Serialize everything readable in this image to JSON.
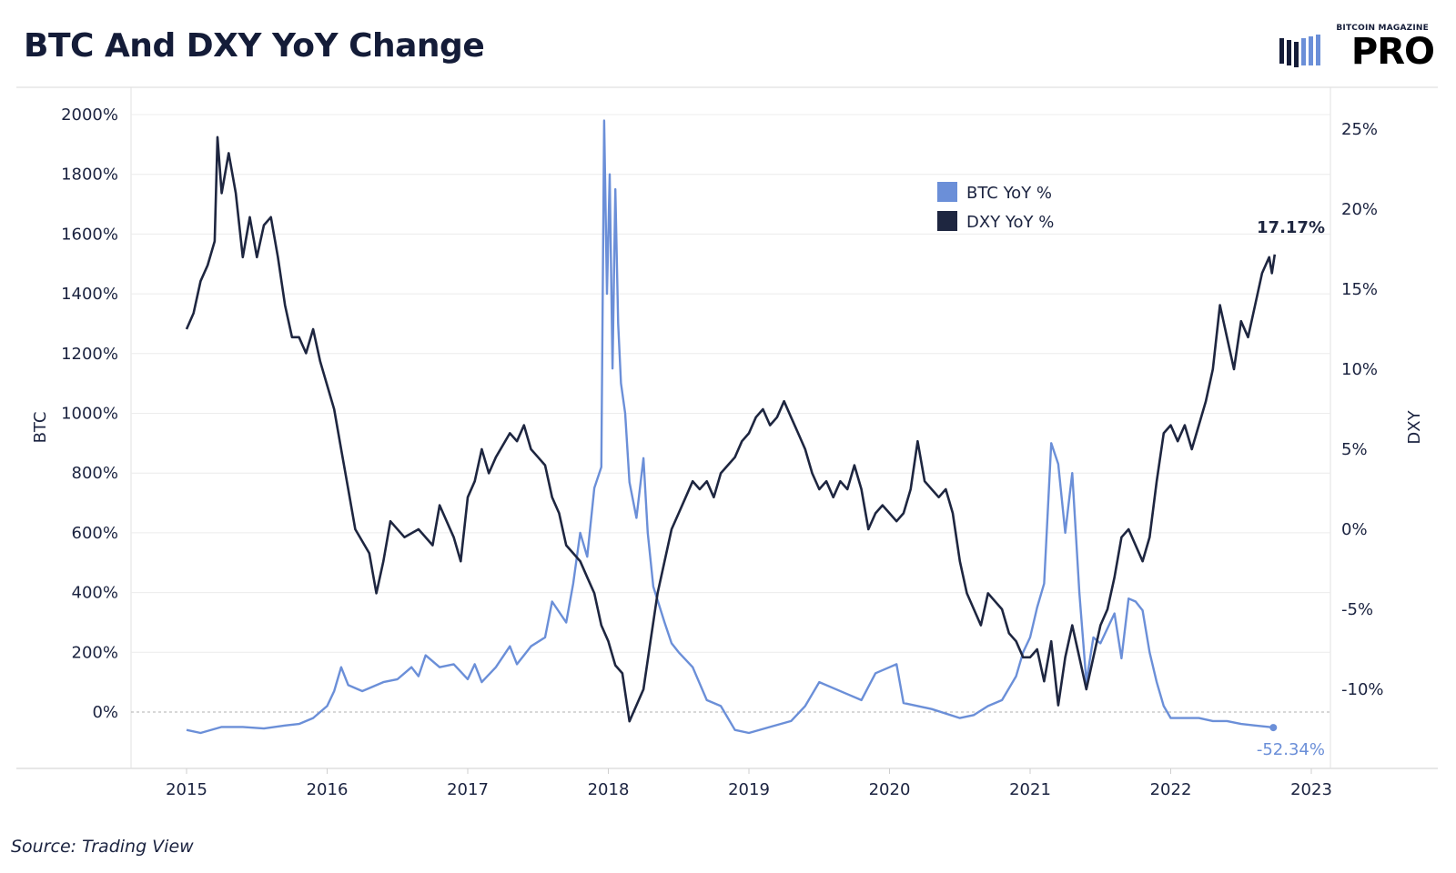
{
  "header": {
    "title": "BTC And DXY YoY Change",
    "logo_small": "BITCOIN MAGAZINE",
    "logo_big": "PRO"
  },
  "footer": {
    "source": "Source: Trading View"
  },
  "colors": {
    "btc": "#6b8fd8",
    "dxy": "#1e2640",
    "text": "#1b2340",
    "grid": "#ececec",
    "zero": "#b0b0b0"
  },
  "chart_data": {
    "type": "line",
    "title": "BTC And DXY YoY Change",
    "x_ticks": [
      "2015",
      "2016",
      "2017",
      "2018",
      "2019",
      "2020",
      "2021",
      "2022",
      "2023"
    ],
    "y_left": {
      "label": "BTC",
      "range": [
        -200,
        2000
      ],
      "ticks": [
        "2000%",
        "1800%",
        "1600%",
        "1400%",
        "1200%",
        "1000%",
        "800%",
        "600%",
        "400%",
        "200%",
        "0%"
      ],
      "tick_values": [
        2000,
        1800,
        1600,
        1400,
        1200,
        1000,
        800,
        600,
        400,
        200,
        0
      ]
    },
    "y_right": {
      "label": "DXY",
      "range": [
        -13.5,
        26.5
      ],
      "ticks": [
        "25%",
        "20%",
        "15%",
        "10%",
        "5%",
        "0%",
        "-5%",
        "-10%"
      ],
      "tick_values": [
        25,
        20,
        15,
        10,
        5,
        0,
        -5,
        -10
      ]
    },
    "legend": {
      "position": "top-right",
      "entries": [
        "BTC YoY %",
        "DXY YoY %"
      ]
    },
    "series": [
      {
        "name": "BTC YoY %",
        "axis": "left",
        "end_label": "-52.34%",
        "points": [
          [
            2015.0,
            -60
          ],
          [
            2015.1,
            -70
          ],
          [
            2015.25,
            -50
          ],
          [
            2015.4,
            -50
          ],
          [
            2015.55,
            -55
          ],
          [
            2015.7,
            -45
          ],
          [
            2015.8,
            -40
          ],
          [
            2015.9,
            -20
          ],
          [
            2016.0,
            20
          ],
          [
            2016.05,
            70
          ],
          [
            2016.1,
            150
          ],
          [
            2016.15,
            90
          ],
          [
            2016.25,
            70
          ],
          [
            2016.4,
            100
          ],
          [
            2016.5,
            110
          ],
          [
            2016.55,
            130
          ],
          [
            2016.6,
            150
          ],
          [
            2016.65,
            120
          ],
          [
            2016.7,
            190
          ],
          [
            2016.8,
            150
          ],
          [
            2016.9,
            160
          ],
          [
            2017.0,
            110
          ],
          [
            2017.05,
            160
          ],
          [
            2017.1,
            100
          ],
          [
            2017.2,
            150
          ],
          [
            2017.3,
            220
          ],
          [
            2017.35,
            160
          ],
          [
            2017.45,
            220
          ],
          [
            2017.55,
            250
          ],
          [
            2017.6,
            370
          ],
          [
            2017.7,
            300
          ],
          [
            2017.75,
            430
          ],
          [
            2017.8,
            600
          ],
          [
            2017.85,
            520
          ],
          [
            2017.9,
            750
          ],
          [
            2017.95,
            820
          ],
          [
            2017.97,
            1980
          ],
          [
            2017.99,
            1400
          ],
          [
            2018.01,
            1800
          ],
          [
            2018.03,
            1150
          ],
          [
            2018.05,
            1750
          ],
          [
            2018.07,
            1300
          ],
          [
            2018.09,
            1100
          ],
          [
            2018.12,
            1000
          ],
          [
            2018.15,
            770
          ],
          [
            2018.2,
            650
          ],
          [
            2018.25,
            850
          ],
          [
            2018.28,
            600
          ],
          [
            2018.32,
            420
          ],
          [
            2018.4,
            300
          ],
          [
            2018.45,
            230
          ],
          [
            2018.5,
            200
          ],
          [
            2018.6,
            150
          ],
          [
            2018.7,
            40
          ],
          [
            2018.8,
            20
          ],
          [
            2018.9,
            -60
          ],
          [
            2019.0,
            -70
          ],
          [
            2019.15,
            -50
          ],
          [
            2019.3,
            -30
          ],
          [
            2019.4,
            20
          ],
          [
            2019.5,
            100
          ],
          [
            2019.6,
            80
          ],
          [
            2019.7,
            60
          ],
          [
            2019.8,
            40
          ],
          [
            2019.9,
            130
          ],
          [
            2020.0,
            150
          ],
          [
            2020.05,
            160
          ],
          [
            2020.1,
            30
          ],
          [
            2020.3,
            10
          ],
          [
            2020.5,
            -20
          ],
          [
            2020.6,
            -10
          ],
          [
            2020.7,
            20
          ],
          [
            2020.8,
            40
          ],
          [
            2020.9,
            120
          ],
          [
            2020.95,
            200
          ],
          [
            2021.0,
            250
          ],
          [
            2021.05,
            350
          ],
          [
            2021.1,
            430
          ],
          [
            2021.15,
            900
          ],
          [
            2021.2,
            830
          ],
          [
            2021.25,
            600
          ],
          [
            2021.3,
            800
          ],
          [
            2021.35,
            400
          ],
          [
            2021.4,
            100
          ],
          [
            2021.45,
            250
          ],
          [
            2021.5,
            230
          ],
          [
            2021.6,
            330
          ],
          [
            2021.65,
            180
          ],
          [
            2021.7,
            380
          ],
          [
            2021.75,
            370
          ],
          [
            2021.8,
            340
          ],
          [
            2021.85,
            200
          ],
          [
            2021.9,
            100
          ],
          [
            2021.95,
            20
          ],
          [
            2022.0,
            -20
          ],
          [
            2022.1,
            -20
          ],
          [
            2022.2,
            -20
          ],
          [
            2022.3,
            -30
          ],
          [
            2022.4,
            -30
          ],
          [
            2022.5,
            -40
          ],
          [
            2022.6,
            -45
          ],
          [
            2022.7,
            -50
          ],
          [
            2022.73,
            -52
          ]
        ]
      },
      {
        "name": "DXY YoY %",
        "axis": "right",
        "end_label": "17.17%",
        "points": [
          [
            2015.0,
            12.5
          ],
          [
            2015.05,
            13.5
          ],
          [
            2015.1,
            15.5
          ],
          [
            2015.15,
            16.5
          ],
          [
            2015.2,
            18
          ],
          [
            2015.22,
            24.5
          ],
          [
            2015.25,
            21
          ],
          [
            2015.3,
            23.5
          ],
          [
            2015.35,
            21
          ],
          [
            2015.4,
            17
          ],
          [
            2015.45,
            19.5
          ],
          [
            2015.5,
            17
          ],
          [
            2015.55,
            19
          ],
          [
            2015.6,
            19.5
          ],
          [
            2015.65,
            17
          ],
          [
            2015.7,
            14
          ],
          [
            2015.75,
            12
          ],
          [
            2015.8,
            12
          ],
          [
            2015.85,
            11
          ],
          [
            2015.9,
            12.5
          ],
          [
            2015.95,
            10.5
          ],
          [
            2016.0,
            9
          ],
          [
            2016.05,
            7.5
          ],
          [
            2016.1,
            5
          ],
          [
            2016.15,
            2.5
          ],
          [
            2016.2,
            0
          ],
          [
            2016.3,
            -1.5
          ],
          [
            2016.35,
            -4
          ],
          [
            2016.4,
            -2
          ],
          [
            2016.45,
            0.5
          ],
          [
            2016.55,
            -0.5
          ],
          [
            2016.65,
            0
          ],
          [
            2016.75,
            -1
          ],
          [
            2016.8,
            1.5
          ],
          [
            2016.9,
            -0.5
          ],
          [
            2016.95,
            -2
          ],
          [
            2017.0,
            2
          ],
          [
            2017.05,
            3
          ],
          [
            2017.1,
            5
          ],
          [
            2017.15,
            3.5
          ],
          [
            2017.2,
            4.5
          ],
          [
            2017.3,
            6
          ],
          [
            2017.35,
            5.5
          ],
          [
            2017.4,
            6.5
          ],
          [
            2017.45,
            5
          ],
          [
            2017.5,
            4.5
          ],
          [
            2017.55,
            4
          ],
          [
            2017.6,
            2
          ],
          [
            2017.65,
            1
          ],
          [
            2017.7,
            -1
          ],
          [
            2017.75,
            -1.5
          ],
          [
            2017.8,
            -2
          ],
          [
            2017.85,
            -3
          ],
          [
            2017.9,
            -4
          ],
          [
            2017.95,
            -6
          ],
          [
            2018.0,
            -7
          ],
          [
            2018.05,
            -8.5
          ],
          [
            2018.1,
            -9
          ],
          [
            2018.15,
            -12
          ],
          [
            2018.2,
            -11
          ],
          [
            2018.25,
            -10
          ],
          [
            2018.3,
            -7
          ],
          [
            2018.35,
            -4
          ],
          [
            2018.4,
            -2
          ],
          [
            2018.45,
            0
          ],
          [
            2018.5,
            1
          ],
          [
            2018.55,
            2
          ],
          [
            2018.6,
            3
          ],
          [
            2018.65,
            2.5
          ],
          [
            2018.7,
            3
          ],
          [
            2018.75,
            2
          ],
          [
            2018.8,
            3.5
          ],
          [
            2018.85,
            4
          ],
          [
            2018.9,
            4.5
          ],
          [
            2018.95,
            5.5
          ],
          [
            2019.0,
            6
          ],
          [
            2019.05,
            7
          ],
          [
            2019.1,
            7.5
          ],
          [
            2019.15,
            6.5
          ],
          [
            2019.2,
            7
          ],
          [
            2019.25,
            8
          ],
          [
            2019.3,
            7
          ],
          [
            2019.35,
            6
          ],
          [
            2019.4,
            5
          ],
          [
            2019.45,
            3.5
          ],
          [
            2019.5,
            2.5
          ],
          [
            2019.55,
            3
          ],
          [
            2019.6,
            2
          ],
          [
            2019.65,
            3
          ],
          [
            2019.7,
            2.5
          ],
          [
            2019.75,
            4
          ],
          [
            2019.8,
            2.5
          ],
          [
            2019.85,
            0
          ],
          [
            2019.9,
            1
          ],
          [
            2019.95,
            1.5
          ],
          [
            2020.0,
            1
          ],
          [
            2020.05,
            0.5
          ],
          [
            2020.1,
            1
          ],
          [
            2020.15,
            2.5
          ],
          [
            2020.2,
            5.5
          ],
          [
            2020.25,
            3
          ],
          [
            2020.3,
            2.5
          ],
          [
            2020.35,
            2
          ],
          [
            2020.4,
            2.5
          ],
          [
            2020.45,
            1
          ],
          [
            2020.5,
            -2
          ],
          [
            2020.55,
            -4
          ],
          [
            2020.6,
            -5
          ],
          [
            2020.65,
            -6
          ],
          [
            2020.7,
            -4
          ],
          [
            2020.75,
            -4.5
          ],
          [
            2020.8,
            -5
          ],
          [
            2020.85,
            -6.5
          ],
          [
            2020.9,
            -7
          ],
          [
            2020.95,
            -8
          ],
          [
            2021.0,
            -8
          ],
          [
            2021.05,
            -7.5
          ],
          [
            2021.1,
            -9.5
          ],
          [
            2021.15,
            -7
          ],
          [
            2021.2,
            -11
          ],
          [
            2021.25,
            -8
          ],
          [
            2021.3,
            -6
          ],
          [
            2021.35,
            -8
          ],
          [
            2021.4,
            -10
          ],
          [
            2021.45,
            -8
          ],
          [
            2021.5,
            -6
          ],
          [
            2021.55,
            -5
          ],
          [
            2021.6,
            -3
          ],
          [
            2021.65,
            -0.5
          ],
          [
            2021.7,
            0
          ],
          [
            2021.75,
            -1
          ],
          [
            2021.8,
            -2
          ],
          [
            2021.85,
            -0.5
          ],
          [
            2021.9,
            3
          ],
          [
            2021.95,
            6
          ],
          [
            2022.0,
            6.5
          ],
          [
            2022.05,
            5.5
          ],
          [
            2022.1,
            6.5
          ],
          [
            2022.15,
            5
          ],
          [
            2022.2,
            6.5
          ],
          [
            2022.25,
            8
          ],
          [
            2022.3,
            10
          ],
          [
            2022.35,
            14
          ],
          [
            2022.4,
            12
          ],
          [
            2022.45,
            10
          ],
          [
            2022.5,
            13
          ],
          [
            2022.55,
            12
          ],
          [
            2022.6,
            14
          ],
          [
            2022.65,
            16
          ],
          [
            2022.7,
            17
          ],
          [
            2022.72,
            16
          ],
          [
            2022.74,
            17.17
          ]
        ]
      }
    ]
  }
}
